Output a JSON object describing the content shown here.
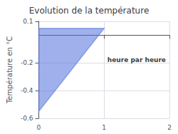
{
  "chart_data": {
    "type": "area",
    "title": "Evolution de la température",
    "ylabel": "Température en °C",
    "x": [
      0,
      0,
      1
    ],
    "values": [
      -0.55,
      0.05,
      0.05
    ],
    "xlim": [
      0,
      2
    ],
    "xticks": [
      0,
      1,
      2
    ],
    "ylim": [
      -0.6,
      0.1
    ],
    "yticks": [
      0.1,
      -0.2,
      -0.4,
      -0.6
    ],
    "grid": true,
    "annotations": [
      {
        "text": "heure par heure",
        "x": 1.05,
        "y": -0.18
      }
    ]
  }
}
